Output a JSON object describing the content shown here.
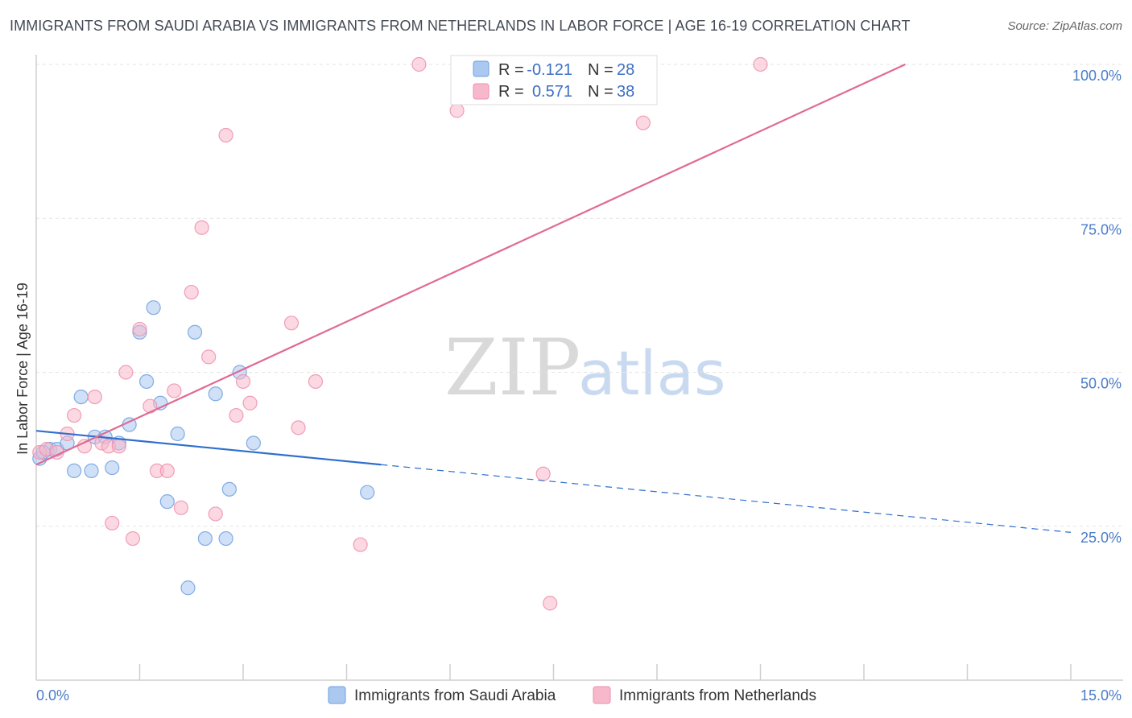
{
  "title": "IMMIGRANTS FROM SAUDI ARABIA VS IMMIGRANTS FROM NETHERLANDS IN LABOR FORCE | AGE 16-19 CORRELATION CHART",
  "source": "Source: ZipAtlas.com",
  "watermark": {
    "zip": "ZIP",
    "atlas": "atlas"
  },
  "legend": {
    "r_label": "R =",
    "n_label": "N =",
    "rows": [
      {
        "r": "-0.121",
        "n": "28"
      },
      {
        "r": "0.571",
        "n": "38"
      }
    ]
  },
  "bottom_legend": [
    "Immigrants from Saudi Arabia",
    "Immigrants from Netherlands"
  ],
  "colors": {
    "saudi_fill": "#aac8f0",
    "saudi_stroke": "#6f9fe0",
    "saudi_line": "#2f6fce",
    "neth_fill": "#f7b8cb",
    "neth_stroke": "#ee8fae",
    "neth_line": "#e06a93",
    "tick": "#4a7cc9",
    "grid": "#e3e3e3"
  },
  "chart_data": {
    "type": "scatter",
    "title": "IMMIGRANTS FROM SAUDI ARABIA VS IMMIGRANTS FROM NETHERLANDS IN LABOR FORCE | AGE 16-19 CORRELATION CHART",
    "xlabel": "",
    "ylabel": "In Labor Force | Age 16-19",
    "xlim": [
      0,
      15
    ],
    "ylim": [
      0,
      100
    ],
    "x_tick_labels": [
      "0.0%",
      "15.0%"
    ],
    "y_ticks": [
      25,
      50,
      75,
      100
    ],
    "y_tick_labels": [
      "25.0%",
      "50.0%",
      "75.0%",
      "100.0%"
    ],
    "grid": true,
    "legend_position": "top-center",
    "series": [
      {
        "name": "Immigrants from Saudi Arabia",
        "r": -0.121,
        "n": 28,
        "trend": {
          "x0": 0.0,
          "y0": 40.5,
          "x1": 5.0,
          "y1": 35.0,
          "dash_x1": 15.0,
          "dash_y1": 24.0
        },
        "points": [
          [
            0.05,
            36.0
          ],
          [
            0.2,
            37.5
          ],
          [
            0.3,
            37.5
          ],
          [
            0.45,
            38.5
          ],
          [
            0.55,
            34.0
          ],
          [
            0.65,
            46.0
          ],
          [
            0.8,
            34.0
          ],
          [
            0.85,
            39.5
          ],
          [
            1.0,
            39.5
          ],
          [
            1.1,
            34.5
          ],
          [
            1.2,
            38.5
          ],
          [
            1.35,
            41.5
          ],
          [
            1.5,
            56.5
          ],
          [
            1.6,
            48.5
          ],
          [
            1.7,
            60.5
          ],
          [
            1.8,
            45.0
          ],
          [
            1.9,
            29.0
          ],
          [
            2.05,
            40.0
          ],
          [
            2.2,
            15.0
          ],
          [
            2.3,
            56.5
          ],
          [
            2.45,
            23.0
          ],
          [
            2.6,
            46.5
          ],
          [
            2.75,
            23.0
          ],
          [
            2.8,
            31.0
          ],
          [
            2.95,
            50.0
          ],
          [
            3.15,
            38.5
          ],
          [
            4.8,
            30.5
          ],
          [
            0.1,
            37.0
          ]
        ]
      },
      {
        "name": "Immigrants from Netherlands",
        "r": 0.571,
        "n": 38,
        "trend": {
          "x0": 0.0,
          "y0": 35.0,
          "x1": 12.6,
          "y1": 100.0
        },
        "points": [
          [
            0.05,
            37.0
          ],
          [
            0.15,
            37.5
          ],
          [
            0.3,
            37.0
          ],
          [
            0.45,
            40.0
          ],
          [
            0.55,
            43.0
          ],
          [
            0.7,
            38.0
          ],
          [
            0.85,
            46.0
          ],
          [
            0.95,
            38.5
          ],
          [
            1.05,
            38.0
          ],
          [
            1.1,
            25.5
          ],
          [
            1.2,
            38.0
          ],
          [
            1.3,
            50.0
          ],
          [
            1.4,
            23.0
          ],
          [
            1.5,
            57.0
          ],
          [
            1.65,
            44.5
          ],
          [
            1.75,
            34.0
          ],
          [
            1.9,
            34.0
          ],
          [
            2.0,
            47.0
          ],
          [
            2.1,
            28.0
          ],
          [
            2.25,
            63.0
          ],
          [
            2.4,
            73.5
          ],
          [
            2.5,
            52.5
          ],
          [
            2.6,
            27.0
          ],
          [
            2.75,
            88.5
          ],
          [
            2.9,
            43.0
          ],
          [
            3.0,
            48.5
          ],
          [
            3.1,
            45.0
          ],
          [
            3.7,
            58.0
          ],
          [
            3.8,
            41.0
          ],
          [
            4.05,
            48.5
          ],
          [
            4.7,
            22.0
          ],
          [
            5.55,
            100.0
          ],
          [
            6.1,
            92.5
          ],
          [
            7.35,
            33.5
          ],
          [
            7.45,
            12.5
          ],
          [
            8.8,
            90.5
          ],
          [
            8.85,
            100.0
          ],
          [
            10.5,
            100.0
          ]
        ]
      }
    ]
  }
}
